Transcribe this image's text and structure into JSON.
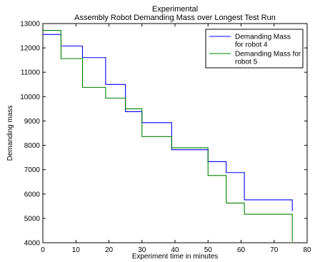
{
  "chart_data": {
    "type": "line",
    "step": "post",
    "title": "Experimental",
    "subtitle": "Assembly Robot Demanding Mass over Longest Test Run",
    "xlabel": "Experiment time in minutes",
    "ylabel": "Demanding mass",
    "xlim": [
      0,
      80
    ],
    "ylim": [
      4000,
      13000
    ],
    "xticks": [
      0,
      10,
      20,
      30,
      40,
      50,
      60,
      70,
      80
    ],
    "yticks": [
      4000,
      5000,
      6000,
      7000,
      8000,
      9000,
      10000,
      11000,
      12000,
      13000
    ],
    "grid": false,
    "legend_position": "top-right",
    "series": [
      {
        "name_lines": [
          "Demanding Mass",
          "for robot 4"
        ],
        "color": "#0000ff",
        "x": [
          0,
          5.5,
          12,
          19,
          25,
          30,
          39,
          50,
          55.5,
          61,
          75.5
        ],
        "y": [
          12550,
          12080,
          11600,
          10500,
          9380,
          8930,
          7820,
          7330,
          6880,
          5760,
          5300
        ]
      },
      {
        "name_lines": [
          "Demanding Mass for",
          "robot 5"
        ],
        "color": "#008000",
        "x": [
          0,
          5.5,
          12,
          19,
          25,
          30,
          39,
          50,
          55.5,
          61,
          75.5
        ],
        "y": [
          12720,
          11560,
          10380,
          9940,
          9500,
          8360,
          7900,
          6760,
          5630,
          5170,
          4050
        ]
      }
    ]
  }
}
